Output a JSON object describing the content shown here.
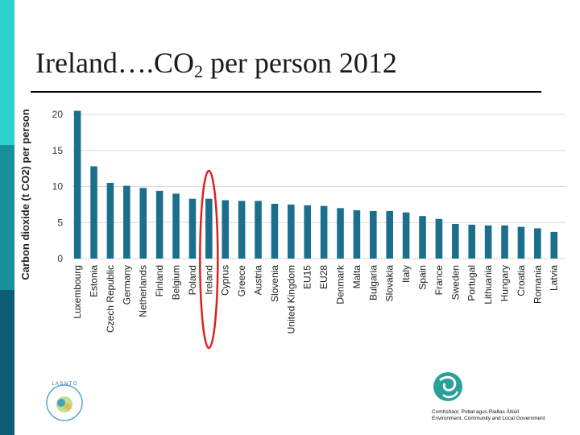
{
  "slide": {
    "title_main": "Ireland….CO",
    "title_sub": "2",
    "title_rest": " per person 2012",
    "theme_colors": [
      "#2ecfcf",
      "#1a8f9e",
      "#0d5c73"
    ]
  },
  "chart_data": {
    "type": "bar",
    "ylabel": "Carbon dioxide (t CO2) per person",
    "ylim": [
      0,
      20
    ],
    "yticks": [
      0,
      5,
      10,
      15,
      20
    ],
    "grid": true,
    "bar_color": "#1b6e8c",
    "highlight": {
      "category": "Ireland",
      "style": "red ellipse",
      "color": "#e02020"
    },
    "categories": [
      "Luxembourg",
      "Estonia",
      "Czech Republic",
      "Germany",
      "Netherlands",
      "Finland",
      "Belgium",
      "Poland",
      "Ireland",
      "Cyprus",
      "Greece",
      "Austria",
      "Slovenia",
      "United Kingdom",
      "EU15",
      "EU28",
      "Denmark",
      "Malta",
      "Bulgaria",
      "Slovakia",
      "Italy",
      "Spain",
      "France",
      "Sweden",
      "Portugal",
      "Lithuania",
      "Hungary",
      "Croatia",
      "Romania",
      "Latvia"
    ],
    "values": [
      20.5,
      12.8,
      10.5,
      10.1,
      9.8,
      9.4,
      9.0,
      8.3,
      8.3,
      8.1,
      8.0,
      8.0,
      7.6,
      7.5,
      7.4,
      7.3,
      7.0,
      6.7,
      6.6,
      6.6,
      6.4,
      5.9,
      5.5,
      4.8,
      4.7,
      4.6,
      4.6,
      4.4,
      4.2,
      3.7
    ]
  },
  "logos": {
    "left_text": "L A S N T G",
    "right_icon": "swirl-logo",
    "right_text_line1": "Comhshaol, Pobal agus Rialtas Áitiúil",
    "right_text_line2": "Environment, Community and Local Government"
  }
}
